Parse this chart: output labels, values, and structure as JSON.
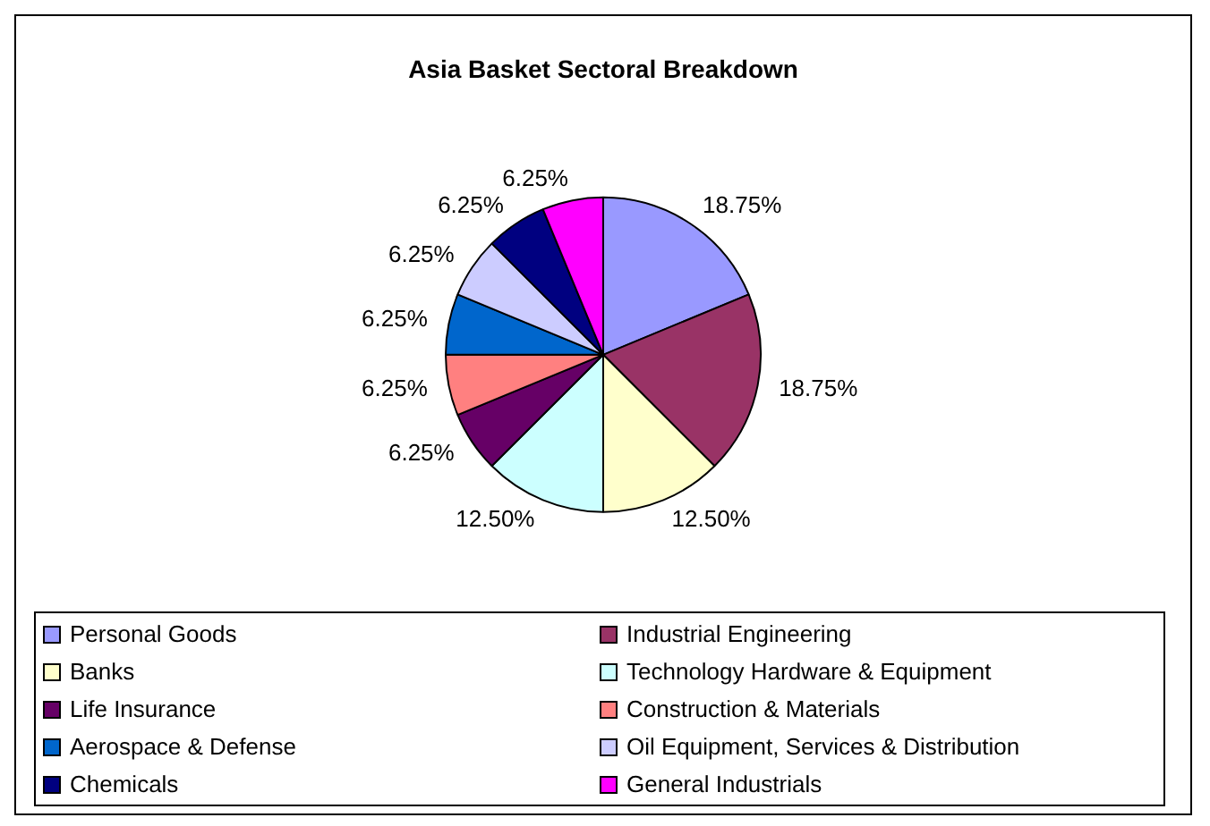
{
  "chart_data": {
    "type": "pie",
    "title": "Asia Basket Sectoral Breakdown",
    "categories": [
      "Personal Goods",
      "Industrial Engineering",
      "Banks",
      "Technology Hardware & Equipment",
      "Life Insurance",
      "Construction & Materials",
      "Aerospace & Defense",
      "Oil Equipment, Services & Distribution",
      "Chemicals",
      "General Industrials"
    ],
    "values": [
      18.75,
      18.75,
      12.5,
      12.5,
      6.25,
      6.25,
      6.25,
      6.25,
      6.25,
      6.25
    ],
    "value_labels": [
      "18.75%",
      "18.75%",
      "12.50%",
      "12.50%",
      "6.25%",
      "6.25%",
      "6.25%",
      "6.25%",
      "6.25%",
      "6.25%"
    ],
    "colors": [
      "#9999ff",
      "#993366",
      "#ffffcc",
      "#ccffff",
      "#660066",
      "#ff8080",
      "#0066cc",
      "#ccccff",
      "#000080",
      "#ff00ff"
    ],
    "legend": "bottom"
  }
}
